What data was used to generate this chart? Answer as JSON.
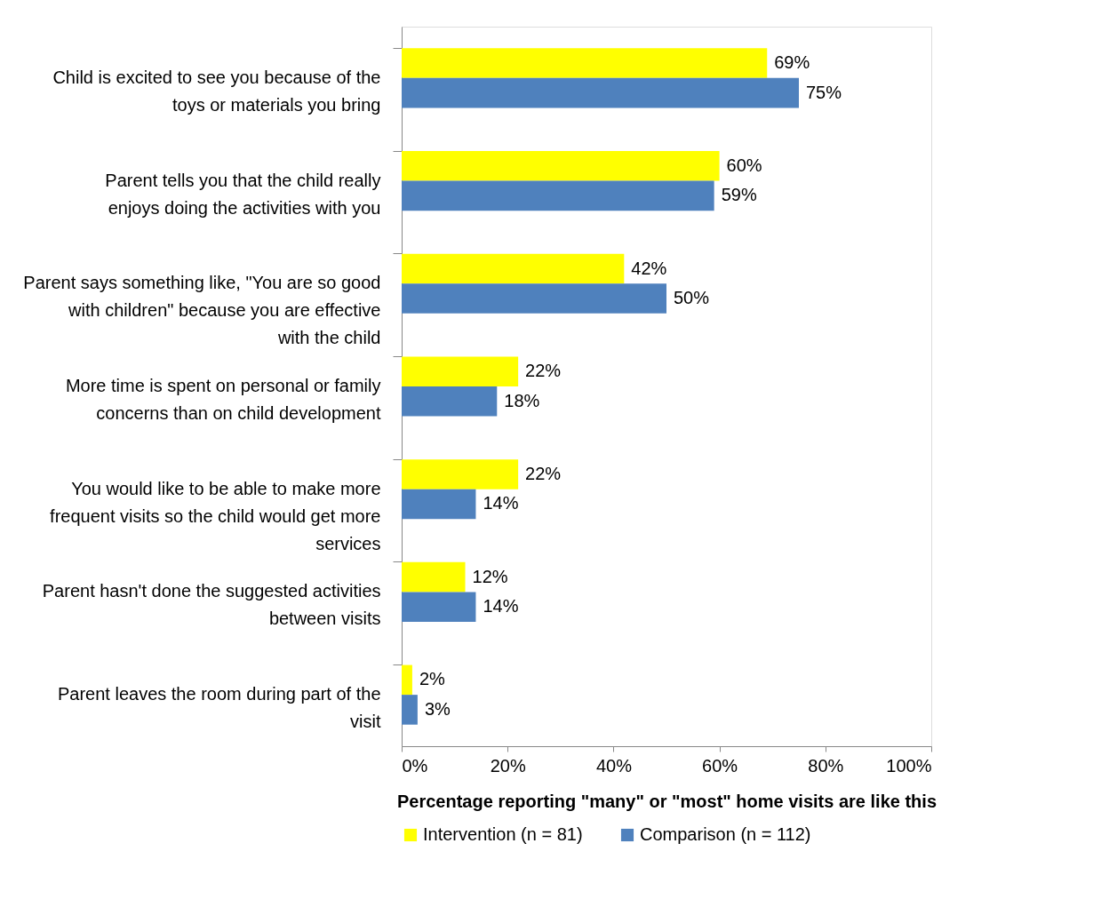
{
  "chart_data": {
    "type": "bar",
    "orientation": "horizontal",
    "xlabel": "Percentage reporting \"many\" or \"most\" home visits are like this",
    "categories": [
      "Child is excited to see you because of the toys or materials you bring",
      "Parent tells you that the child really enjoys doing the activities with you",
      "Parent says something like, \"You are so good with children\" because you are effective with the child",
      "More time is spent on personal or family concerns than on child development",
      "You would like to be able to make more frequent visits so the child would get more services",
      "Parent hasn't done the suggested activities between visits",
      "Parent leaves the room during part of the visit"
    ],
    "series": [
      {
        "name": "Intervention (n = 81)",
        "color": "#ffff00",
        "values": [
          69,
          60,
          42,
          22,
          22,
          12,
          2
        ]
      },
      {
        "name": "Comparison (n = 112)",
        "color": "#4f81bd",
        "values": [
          75,
          59,
          50,
          18,
          14,
          14,
          3
        ]
      }
    ],
    "value_labels": [
      [
        "69%",
        "60%",
        "42%",
        "22%",
        "22%",
        "12%",
        "2%"
      ],
      [
        "75%",
        "59%",
        "50%",
        "18%",
        "14%",
        "14%",
        "3%"
      ]
    ],
    "xlim": [
      0,
      100
    ],
    "xticks": [
      {
        "value": 0,
        "label": "0%"
      },
      {
        "value": 20,
        "label": "20%"
      },
      {
        "value": 40,
        "label": "40%"
      },
      {
        "value": 60,
        "label": "60%"
      },
      {
        "value": 80,
        "label": "80%"
      },
      {
        "value": 100,
        "label": "100%"
      }
    ],
    "grid": false,
    "legend": "bottom"
  }
}
